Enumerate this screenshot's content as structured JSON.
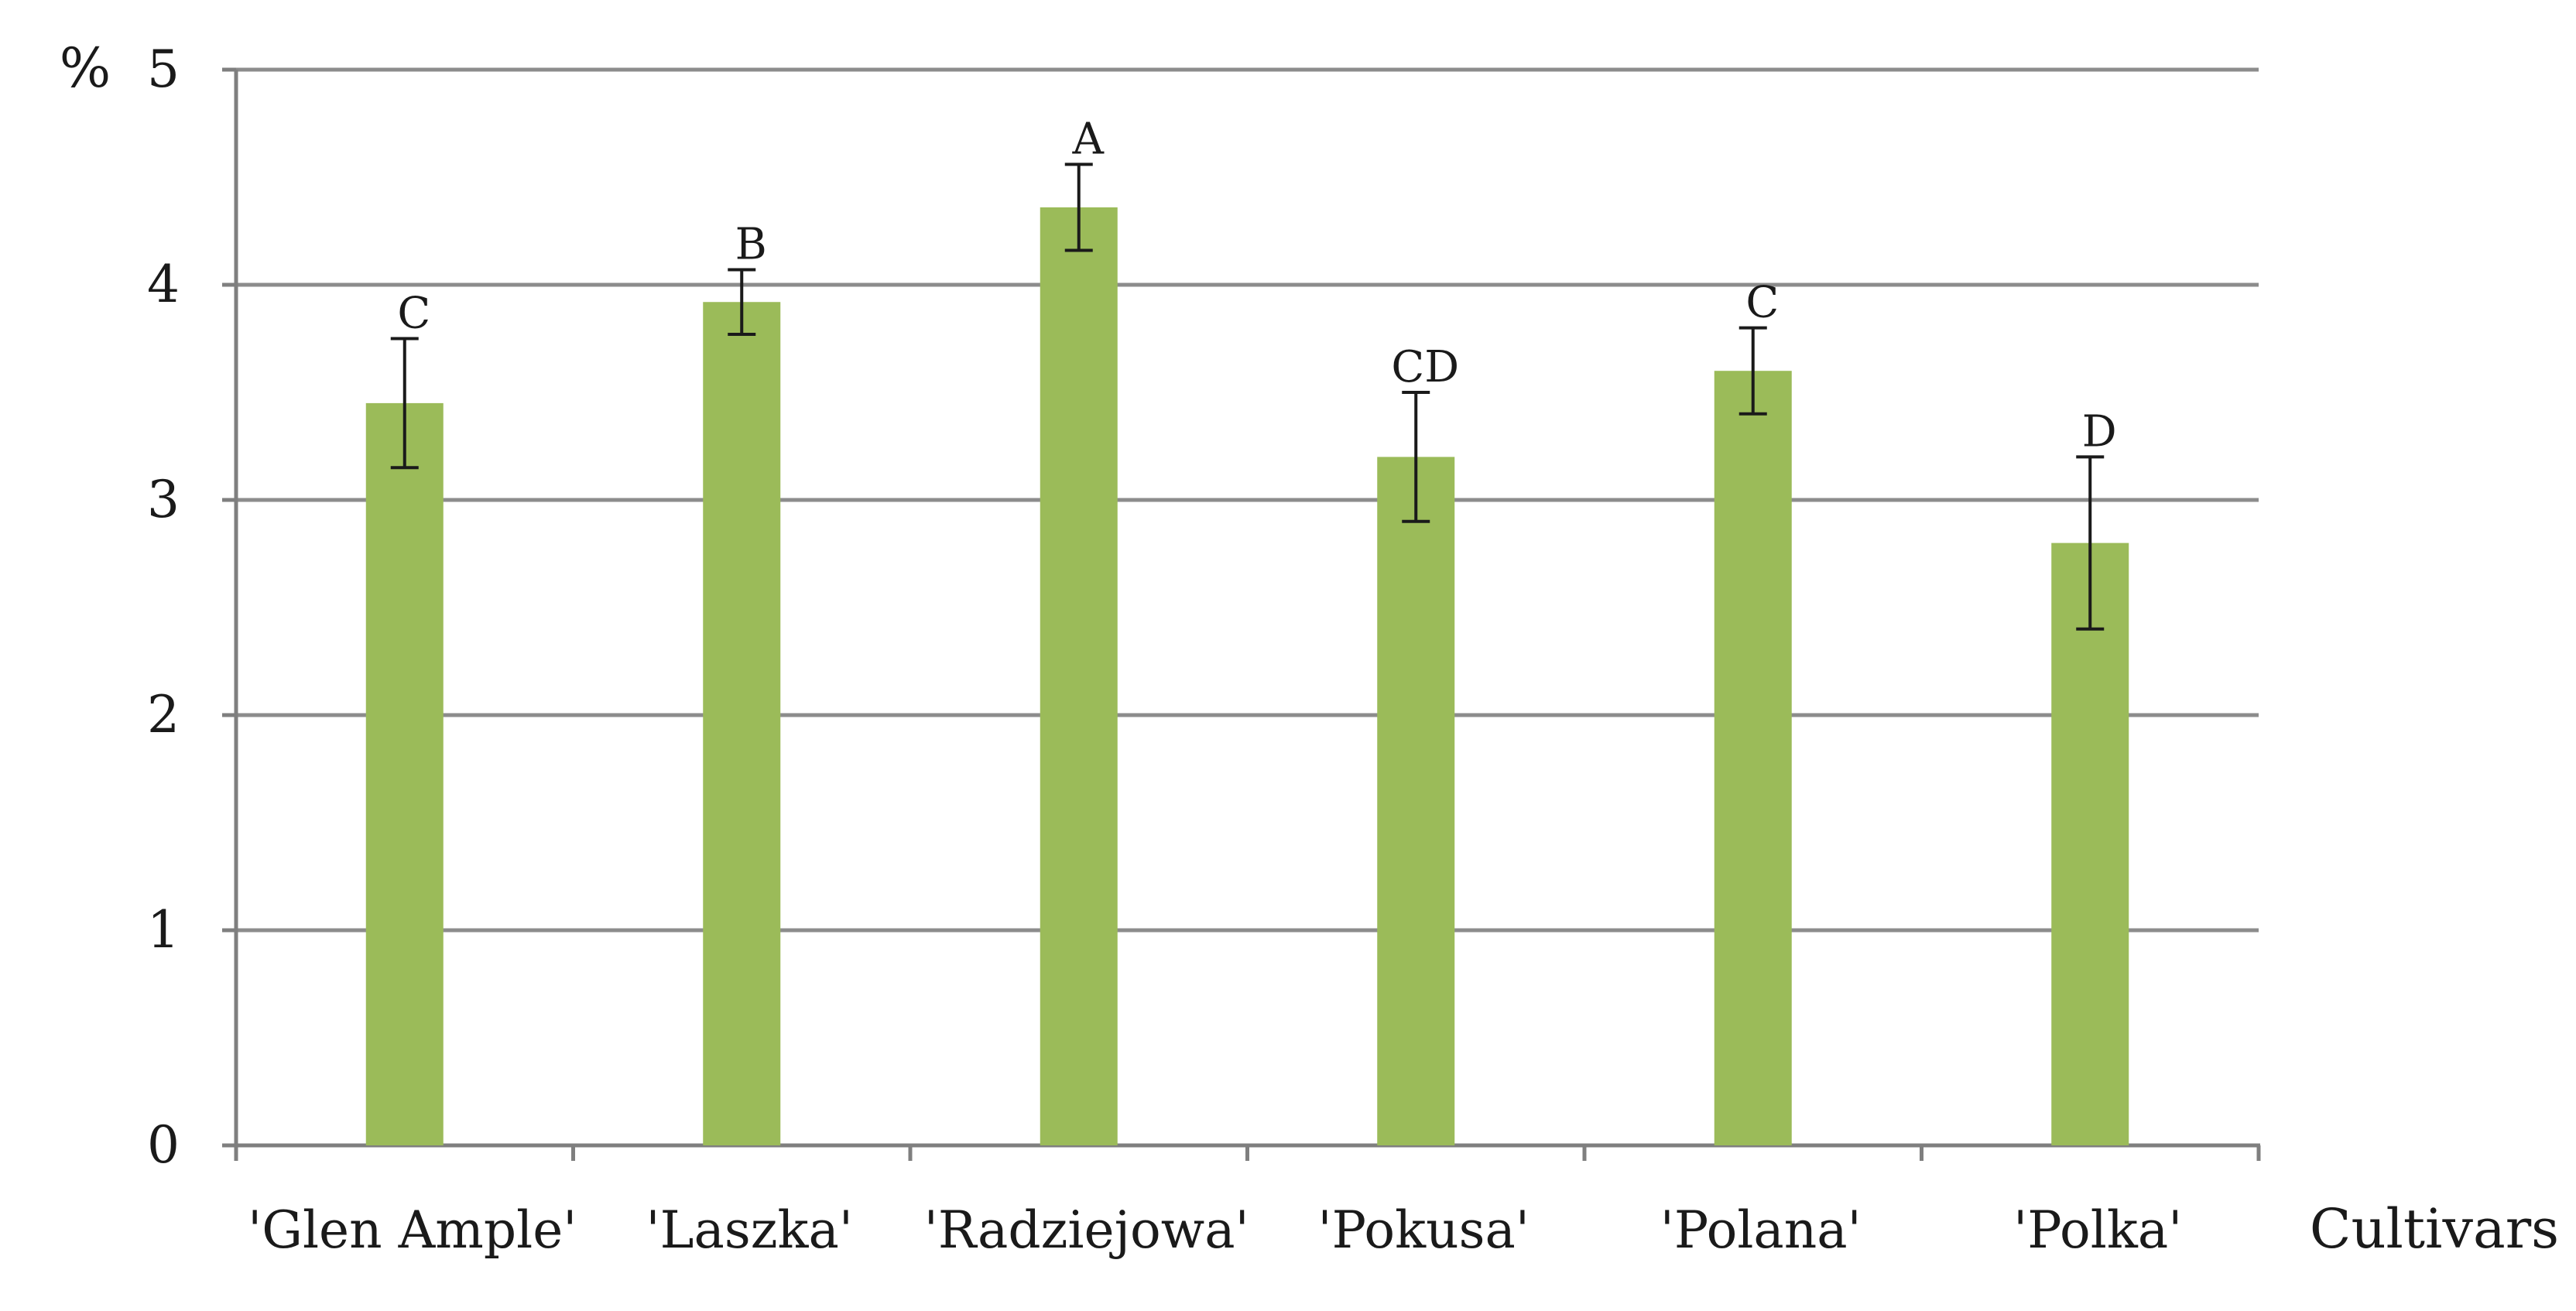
{
  "chart_data": {
    "type": "bar",
    "title": "",
    "xlabel": "Cultivars",
    "ylabel": "%",
    "categories": [
      "'Glen Ample'",
      "'Laszka'",
      "'Radziejowa'",
      "'Pokusa'",
      "'Polana'",
      "'Polka'"
    ],
    "values": [
      3.45,
      3.92,
      4.36,
      3.2,
      3.6,
      2.8
    ],
    "error": [
      0.3,
      0.15,
      0.2,
      0.3,
      0.2,
      0.4
    ],
    "significance_letters": [
      "C",
      "B",
      "A",
      "CD",
      "C",
      "D"
    ],
    "ylim": [
      0,
      5
    ],
    "yticks": [
      "0",
      "1",
      "2",
      "3",
      "4",
      "5"
    ],
    "grid": true,
    "legend": "none",
    "colors": {
      "bar": "#9bbb59",
      "grid": "#8c8c8c",
      "axis": "#7f7f7f",
      "error_bar": "#1a1a1a",
      "text": "#1a1a1a"
    }
  }
}
